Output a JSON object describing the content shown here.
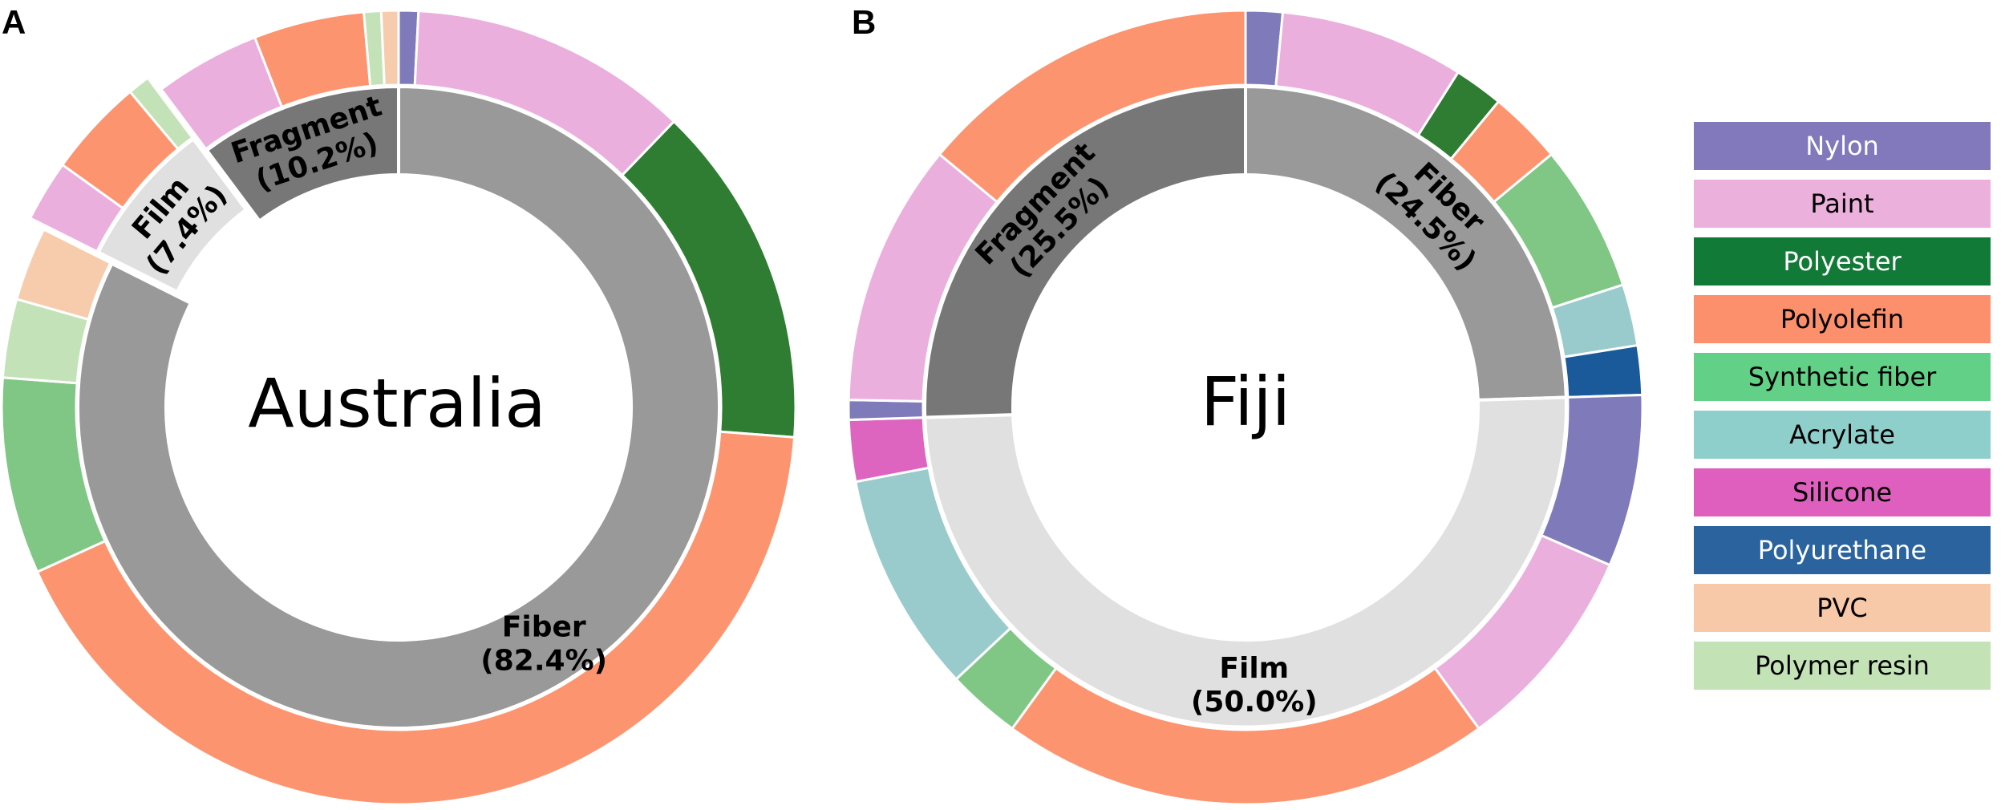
{
  "chart_data": [
    {
      "type": "pie",
      "subtype": "nested-donut",
      "panel": "A",
      "center_label": "Australia",
      "start_angle_deg": 0,
      "inner_ring": {
        "categories": [
          "Fiber",
          "Film",
          "Fragment"
        ],
        "labels": [
          "Fiber\n(82.4%)",
          "Film\n(7.4%)",
          "Fragment\n(10.2%)"
        ],
        "values": [
          82.4,
          7.4,
          10.2
        ],
        "colors": [
          "#999999",
          "#e0e0e0",
          "#777777"
        ]
      },
      "outer_ring": [
        {
          "parent": "Fiber",
          "polymer": "Nylon",
          "value": 0.8
        },
        {
          "parent": "Fiber",
          "polymer": "Paint",
          "value": 11.4
        },
        {
          "parent": "Fiber",
          "polymer": "Polyester",
          "value": 14.0
        },
        {
          "parent": "Fiber",
          "polymer": "Polyolefin",
          "value": 42.0
        },
        {
          "parent": "Fiber",
          "polymer": "Synthetic fiber",
          "value": 8.0
        },
        {
          "parent": "Fiber",
          "polymer": "Polymer resin",
          "value": 3.2
        },
        {
          "parent": "Fiber",
          "polymer": "PVC",
          "value": 3.0
        },
        {
          "parent": "Film",
          "polymer": "Paint",
          "value": 2.5
        },
        {
          "parent": "Film",
          "polymer": "Polyolefin",
          "value": 4.0
        },
        {
          "parent": "Film",
          "polymer": "Polymer resin",
          "value": 0.9
        },
        {
          "parent": "Fragment",
          "polymer": "Paint",
          "value": 4.3
        },
        {
          "parent": "Fragment",
          "polymer": "Polyolefin",
          "value": 4.5
        },
        {
          "parent": "Fragment",
          "polymer": "Polymer resin",
          "value": 0.7
        },
        {
          "parent": "Fragment",
          "polymer": "PVC",
          "value": 0.7
        }
      ],
      "exploded_categories": [
        "Film"
      ]
    },
    {
      "type": "pie",
      "subtype": "nested-donut",
      "panel": "B",
      "center_label": "Fiji",
      "start_angle_deg": 0,
      "inner_ring": {
        "categories": [
          "Fiber",
          "Film",
          "Fragment"
        ],
        "labels": [
          "Fiber\n(24.5%)",
          "Film\n(50.0%)",
          "Fragment\n(25.5%)"
        ],
        "values": [
          24.5,
          50.0,
          25.5
        ],
        "colors": [
          "#999999",
          "#e0e0e0",
          "#777777"
        ]
      },
      "outer_ring": [
        {
          "parent": "Fiber",
          "polymer": "Nylon",
          "value": 1.5
        },
        {
          "parent": "Fiber",
          "polymer": "Paint",
          "value": 7.5
        },
        {
          "parent": "Fiber",
          "polymer": "Polyester",
          "value": 2.0
        },
        {
          "parent": "Fiber",
          "polymer": "Polyolefin",
          "value": 3.0
        },
        {
          "parent": "Fiber",
          "polymer": "Synthetic fiber",
          "value": 6.0
        },
        {
          "parent": "Fiber",
          "polymer": "Acrylate",
          "value": 2.5
        },
        {
          "parent": "Fiber",
          "polymer": "Polyurethane",
          "value": 2.0
        },
        {
          "parent": "Film",
          "polymer": "Nylon",
          "value": 7.0
        },
        {
          "parent": "Film",
          "polymer": "Paint",
          "value": 8.5
        },
        {
          "parent": "Film",
          "polymer": "Polyolefin",
          "value": 20.0
        },
        {
          "parent": "Film",
          "polymer": "Synthetic fiber",
          "value": 3.0
        },
        {
          "parent": "Film",
          "polymer": "Acrylate",
          "value": 9.0
        },
        {
          "parent": "Film",
          "polymer": "Silicone",
          "value": 2.5
        },
        {
          "parent": "Fragment",
          "polymer": "Nylon",
          "value": 0.8
        },
        {
          "parent": "Fragment",
          "polymer": "Paint",
          "value": 10.7
        },
        {
          "parent": "Fragment",
          "polymer": "Polyolefin",
          "value": 14.0
        }
      ],
      "exploded_categories": []
    }
  ],
  "legend": {
    "entries": [
      {
        "name": "Nylon",
        "color": "#8179bb",
        "text_color": "#ffffff"
      },
      {
        "name": "Paint",
        "color": "#ebb0dc",
        "text_color": "#000000"
      },
      {
        "name": "Polyester",
        "color": "#127a37",
        "text_color": "#ffffff"
      },
      {
        "name": "Polyolefin",
        "color": "#fc8f6c",
        "text_color": "#000000"
      },
      {
        "name": "Synthetic fiber",
        "color": "#62d087",
        "text_color": "#000000"
      },
      {
        "name": "Acrylate",
        "color": "#8ecfcc",
        "text_color": "#000000"
      },
      {
        "name": "Silicone",
        "color": "#de5fbe",
        "text_color": "#000000"
      },
      {
        "name": "Polyurethane",
        "color": "#2a639d",
        "text_color": "#ffffff"
      },
      {
        "name": "PVC",
        "color": "#f8c9a9",
        "text_color": "#000000"
      },
      {
        "name": "Polymer resin",
        "color": "#c3e3b6",
        "text_color": "#000000"
      }
    ]
  },
  "ring_colors": {
    "Nylon": "#7f7bbb",
    "Paint": "#ebafde",
    "Polyester": "#2f7d32",
    "Polyolefin": "#fc9470",
    "Synthetic fiber": "#80c785",
    "Acrylate": "#9acbcc",
    "Silicone": "#dd65c0",
    "Polyurethane": "#1a5a9a",
    "PVC": "#f7ccad",
    "Polymer resin": "#c4e2b8"
  }
}
